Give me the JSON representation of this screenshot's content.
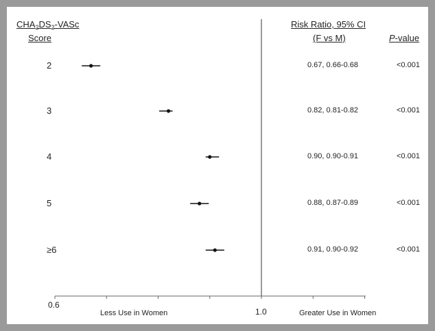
{
  "headers": {
    "score_pre": "CHA",
    "score_sub1": "2",
    "score_mid": "DS",
    "score_sub2": "2",
    "score_post": "-VASc",
    "score_line2": "Score",
    "rr_line1": "Risk Ratio, 95% CI",
    "rr_line2": "(F vs M)",
    "p_italic": "P",
    "p_rest": "-value"
  },
  "chart_data": {
    "type": "forest",
    "x_axis": {
      "ticks": [
        "0.6",
        "1.0"
      ],
      "range": [
        0.6,
        1.2
      ],
      "reference": 1.0,
      "left_label": "Less Use in Women",
      "right_label": "Greater Use in Women"
    },
    "rows": [
      {
        "score": "2",
        "rr": 0.67,
        "lo": 0.66,
        "hi": 0.68,
        "rr_text": "0.67, 0.66-0.68",
        "p": "<0.001"
      },
      {
        "score": "3",
        "rr": 0.82,
        "lo": 0.81,
        "hi": 0.82,
        "rr_text": "0.82, 0.81-0.82",
        "p": "<0.001"
      },
      {
        "score": "4",
        "rr": 0.9,
        "lo": 0.9,
        "hi": 0.91,
        "rr_text": "0.90, 0.90-0.91",
        "p": "<0.001"
      },
      {
        "score": "5",
        "rr": 0.88,
        "lo": 0.87,
        "hi": 0.89,
        "rr_text": "0.88, 0.87-0.89",
        "p": "<0.001"
      },
      {
        "score": "≥6",
        "rr": 0.91,
        "lo": 0.9,
        "hi": 0.92,
        "rr_text": "0.91, 0.90-0.92",
        "p": "<0.001"
      }
    ]
  }
}
